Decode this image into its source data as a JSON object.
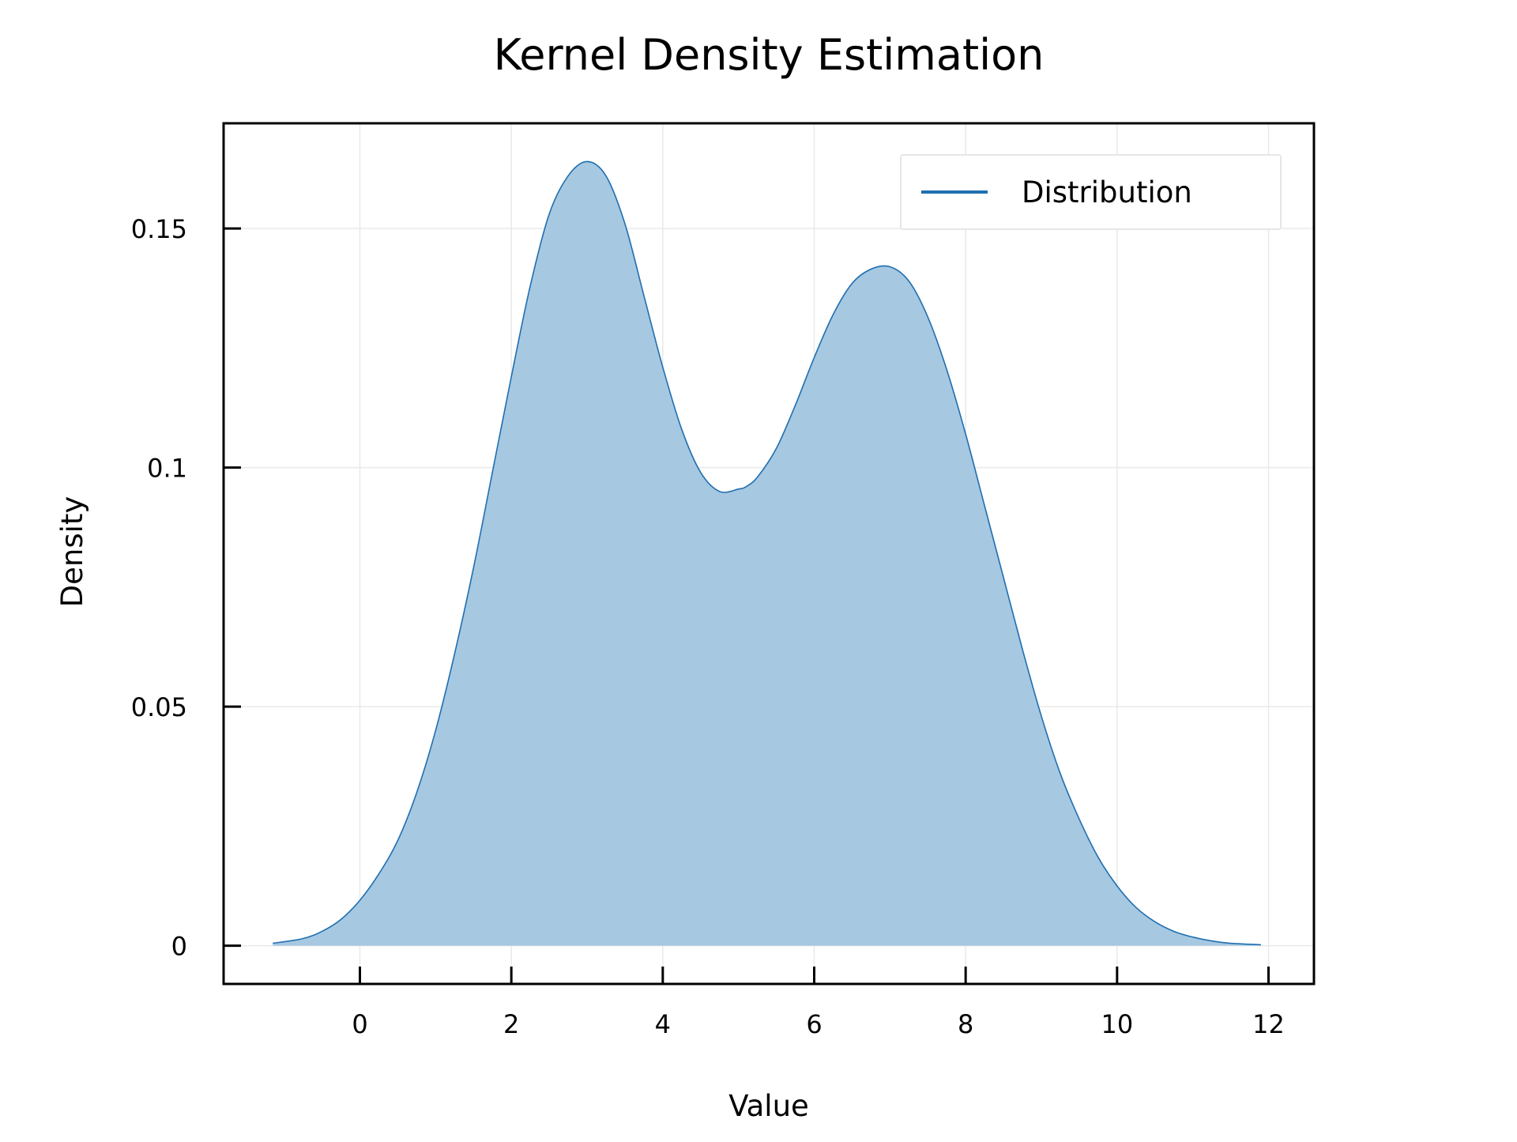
{
  "chart_data": {
    "type": "area",
    "title": "Kernel Density Estimation",
    "xlabel": "Value",
    "ylabel": "Density",
    "xlim": [
      -1.8,
      12.6
    ],
    "ylim": [
      -0.008,
      0.172
    ],
    "xticks": [
      0,
      2,
      4,
      6,
      8,
      10,
      12
    ],
    "xtick_labels": [
      "0",
      "2",
      "4",
      "6",
      "8",
      "10",
      "12"
    ],
    "yticks": [
      0,
      0.05,
      0.1,
      0.15
    ],
    "ytick_labels": [
      "0",
      "0.05",
      "0.1",
      "0.15"
    ],
    "grid": true,
    "legend": {
      "position": "top-right",
      "entries": [
        "Distribution"
      ]
    },
    "series": [
      {
        "name": "Distribution",
        "color": "#1f6fb0",
        "fill_color": "#a6c8e1",
        "x": [
          -1.15,
          -0.75,
          -0.5,
          -0.25,
          0,
          0.25,
          0.5,
          0.75,
          1,
          1.25,
          1.5,
          1.75,
          2,
          2.25,
          2.5,
          2.75,
          3,
          3.25,
          3.5,
          3.75,
          4,
          4.25,
          4.5,
          4.75,
          5,
          5.1,
          5.25,
          5.5,
          5.75,
          6,
          6.25,
          6.5,
          6.75,
          7,
          7.25,
          7.5,
          7.75,
          8,
          8.25,
          8.5,
          8.75,
          9,
          9.25,
          9.5,
          9.75,
          10,
          10.25,
          10.5,
          10.75,
          11,
          11.25,
          11.5,
          11.9
        ],
        "y": [
          0.0005,
          0.0015,
          0.003,
          0.0055,
          0.0095,
          0.015,
          0.022,
          0.032,
          0.045,
          0.061,
          0.079,
          0.099,
          0.119,
          0.138,
          0.153,
          0.161,
          0.164,
          0.161,
          0.151,
          0.136,
          0.121,
          0.108,
          0.099,
          0.095,
          0.0955,
          0.096,
          0.098,
          0.104,
          0.113,
          0.123,
          0.132,
          0.1385,
          0.1415,
          0.142,
          0.139,
          0.1315,
          0.1205,
          0.107,
          0.092,
          0.077,
          0.062,
          0.048,
          0.036,
          0.0265,
          0.0185,
          0.0125,
          0.008,
          0.005,
          0.003,
          0.0018,
          0.001,
          0.0005,
          0.0002
        ]
      }
    ]
  }
}
